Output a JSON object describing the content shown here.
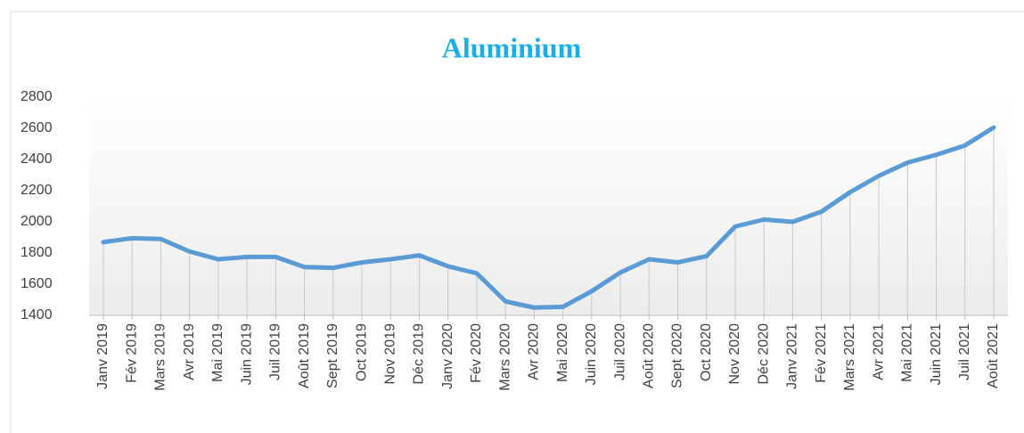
{
  "chart_data": {
    "type": "line",
    "title": "Aluminium",
    "categories": [
      "Janv 2019",
      "Fév 2019",
      "Mars 2019",
      "Avr 2019",
      "Mai 2019",
      "Juin 2019",
      "Juil 2019",
      "Août 2019",
      "Sept 2019",
      "Oct 2019",
      "Nov 2019",
      "Déc 2019",
      "Janv 2020",
      "Fév 2020",
      "Mars 2020",
      "Avr 2020",
      "Mai 2020",
      "Juin 2020",
      "Juil 2020",
      "Août 2020",
      "Sept 2020",
      "Oct 2020",
      "Nov 2020",
      "Déc 2020",
      "Janv 2021",
      "Fév 2021",
      "Mars 2021",
      "Avr 2021",
      "Mai 2021",
      "Juin 2021",
      "Juil 2021",
      "Août 2021"
    ],
    "values": [
      1870,
      1895,
      1890,
      1810,
      1760,
      1775,
      1775,
      1710,
      1705,
      1740,
      1760,
      1785,
      1715,
      1670,
      1490,
      1450,
      1455,
      1555,
      1675,
      1760,
      1740,
      1780,
      1970,
      2015,
      2000,
      2065,
      2190,
      2295,
      2380,
      2430,
      2490,
      2605
    ],
    "color": "#5b9bd5",
    "ylim": [
      1400,
      2800
    ],
    "yticks": [
      1400,
      1600,
      1800,
      2000,
      2200,
      2400,
      2600,
      2800
    ],
    "drop_lines": true
  }
}
